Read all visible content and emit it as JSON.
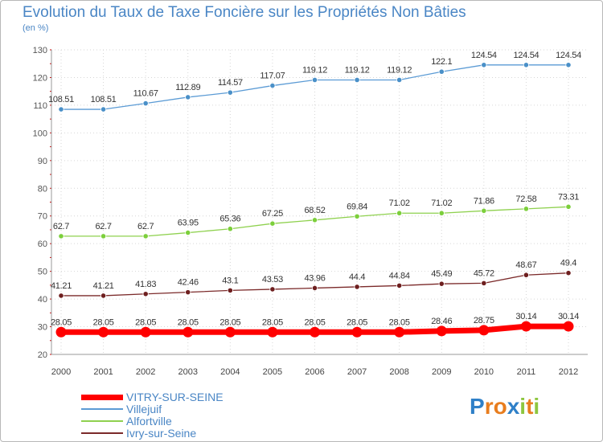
{
  "header": {
    "title": "Evolution du Taux de Taxe Foncière sur les Propriétés Non Bâties",
    "unit": "(en %)"
  },
  "chart_data": {
    "type": "line",
    "title": "Evolution du Taux de Taxe Foncière sur les Propriétés Non Bâties",
    "ylabel": "(en %)",
    "xlabel": "",
    "categories": [
      "2000",
      "2001",
      "2002",
      "2003",
      "2004",
      "2005",
      "2006",
      "2007",
      "2008",
      "2009",
      "2010",
      "2011",
      "2012"
    ],
    "ylim": [
      20,
      130
    ],
    "yticks": [
      20,
      30,
      40,
      50,
      60,
      70,
      80,
      90,
      100,
      110,
      120,
      130
    ],
    "grid": true,
    "series": [
      {
        "name": "VITRY-SUR-SEINE",
        "color": "#ff0000",
        "labels": [
          "28.05",
          "28.05",
          "28.05",
          "28.05",
          "28.05",
          "28.05",
          "28.05",
          "28.05",
          "28.05",
          "28.46",
          "28.75",
          "30.14",
          "30.14"
        ],
        "values": [
          28.05,
          28.05,
          28.05,
          28.05,
          28.05,
          28.05,
          28.05,
          28.05,
          28.05,
          28.46,
          28.75,
          30.14,
          30.14
        ]
      },
      {
        "name": "Villejuif",
        "color": "#5b9bd5",
        "labels": [
          "108.51",
          "108.51",
          "110.67",
          "112.89",
          "114.57",
          "117.07",
          "119.12",
          "119.12",
          "119.12",
          "122.1",
          "124.54",
          "124.54",
          "124.54"
        ],
        "values": [
          108.51,
          108.51,
          110.67,
          112.89,
          114.57,
          117.07,
          119.12,
          119.12,
          119.12,
          122.1,
          124.54,
          124.54,
          124.54
        ]
      },
      {
        "name": "Alfortville",
        "color": "#8fd14f",
        "labels": [
          "62.7",
          "62.7",
          "62.7",
          "63.95",
          "65.36",
          "67.25",
          "68.52",
          "69.84",
          "71.02",
          "71.02",
          "71.86",
          "72.58",
          "73.31"
        ],
        "values": [
          62.7,
          62.7,
          62.7,
          63.95,
          65.36,
          67.25,
          68.52,
          69.84,
          71.02,
          71.02,
          71.86,
          72.58,
          73.31
        ]
      },
      {
        "name": "Ivry-sur-Seine",
        "color": "#7b2a2a",
        "labels": [
          "41.21",
          "41.21",
          "41.83",
          "42.46",
          "43.1",
          "43.53",
          "43.96",
          "44.4",
          "44.84",
          "45.49",
          "45.72",
          "48.67",
          "49.4"
        ],
        "values": [
          41.21,
          41.21,
          41.83,
          42.46,
          43.1,
          43.53,
          43.96,
          44.4,
          44.84,
          45.49,
          45.72,
          48.67,
          49.4
        ]
      }
    ]
  },
  "legend": {
    "items": [
      "VITRY-SUR-SEINE",
      "Villejuif",
      "Alfortville",
      "Ivry-sur-Seine"
    ],
    "colors": [
      "#ff0000",
      "#5b9bd5",
      "#8fd14f",
      "#7b2a2a"
    ]
  },
  "logo": {
    "letters": [
      "P",
      "r",
      "o",
      "x",
      "i",
      "t",
      "i"
    ],
    "colors": [
      "#2f80c8",
      "#e87d1e",
      "#e87d1e",
      "#2f80c8",
      "#8dc63f",
      "#e87d1e",
      "#8dc63f"
    ],
    "icon": "proxiti-logo"
  }
}
